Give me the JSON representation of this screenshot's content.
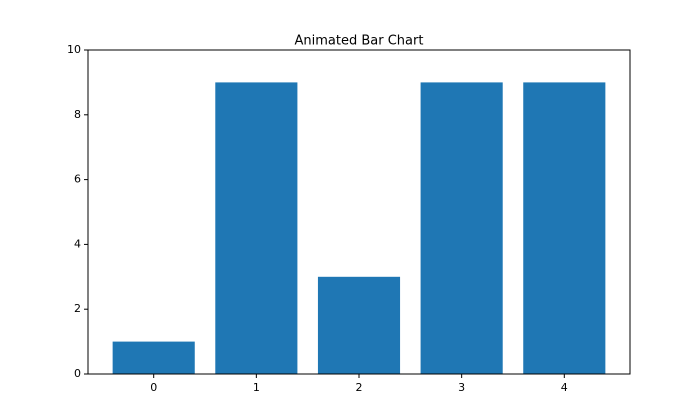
{
  "chart_data": {
    "type": "bar",
    "title": "Animated Bar Chart",
    "x": [
      0,
      1,
      2,
      3,
      4
    ],
    "values": [
      1,
      9,
      3,
      9,
      9
    ],
    "color": "#1f77b4",
    "xlim": [
      -0.64,
      4.64
    ],
    "xticks": [
      0,
      1,
      2,
      3,
      4
    ],
    "ylim": [
      0,
      10
    ],
    "yticks": [
      0,
      2,
      4,
      6,
      8,
      10
    ],
    "grid": false
  }
}
